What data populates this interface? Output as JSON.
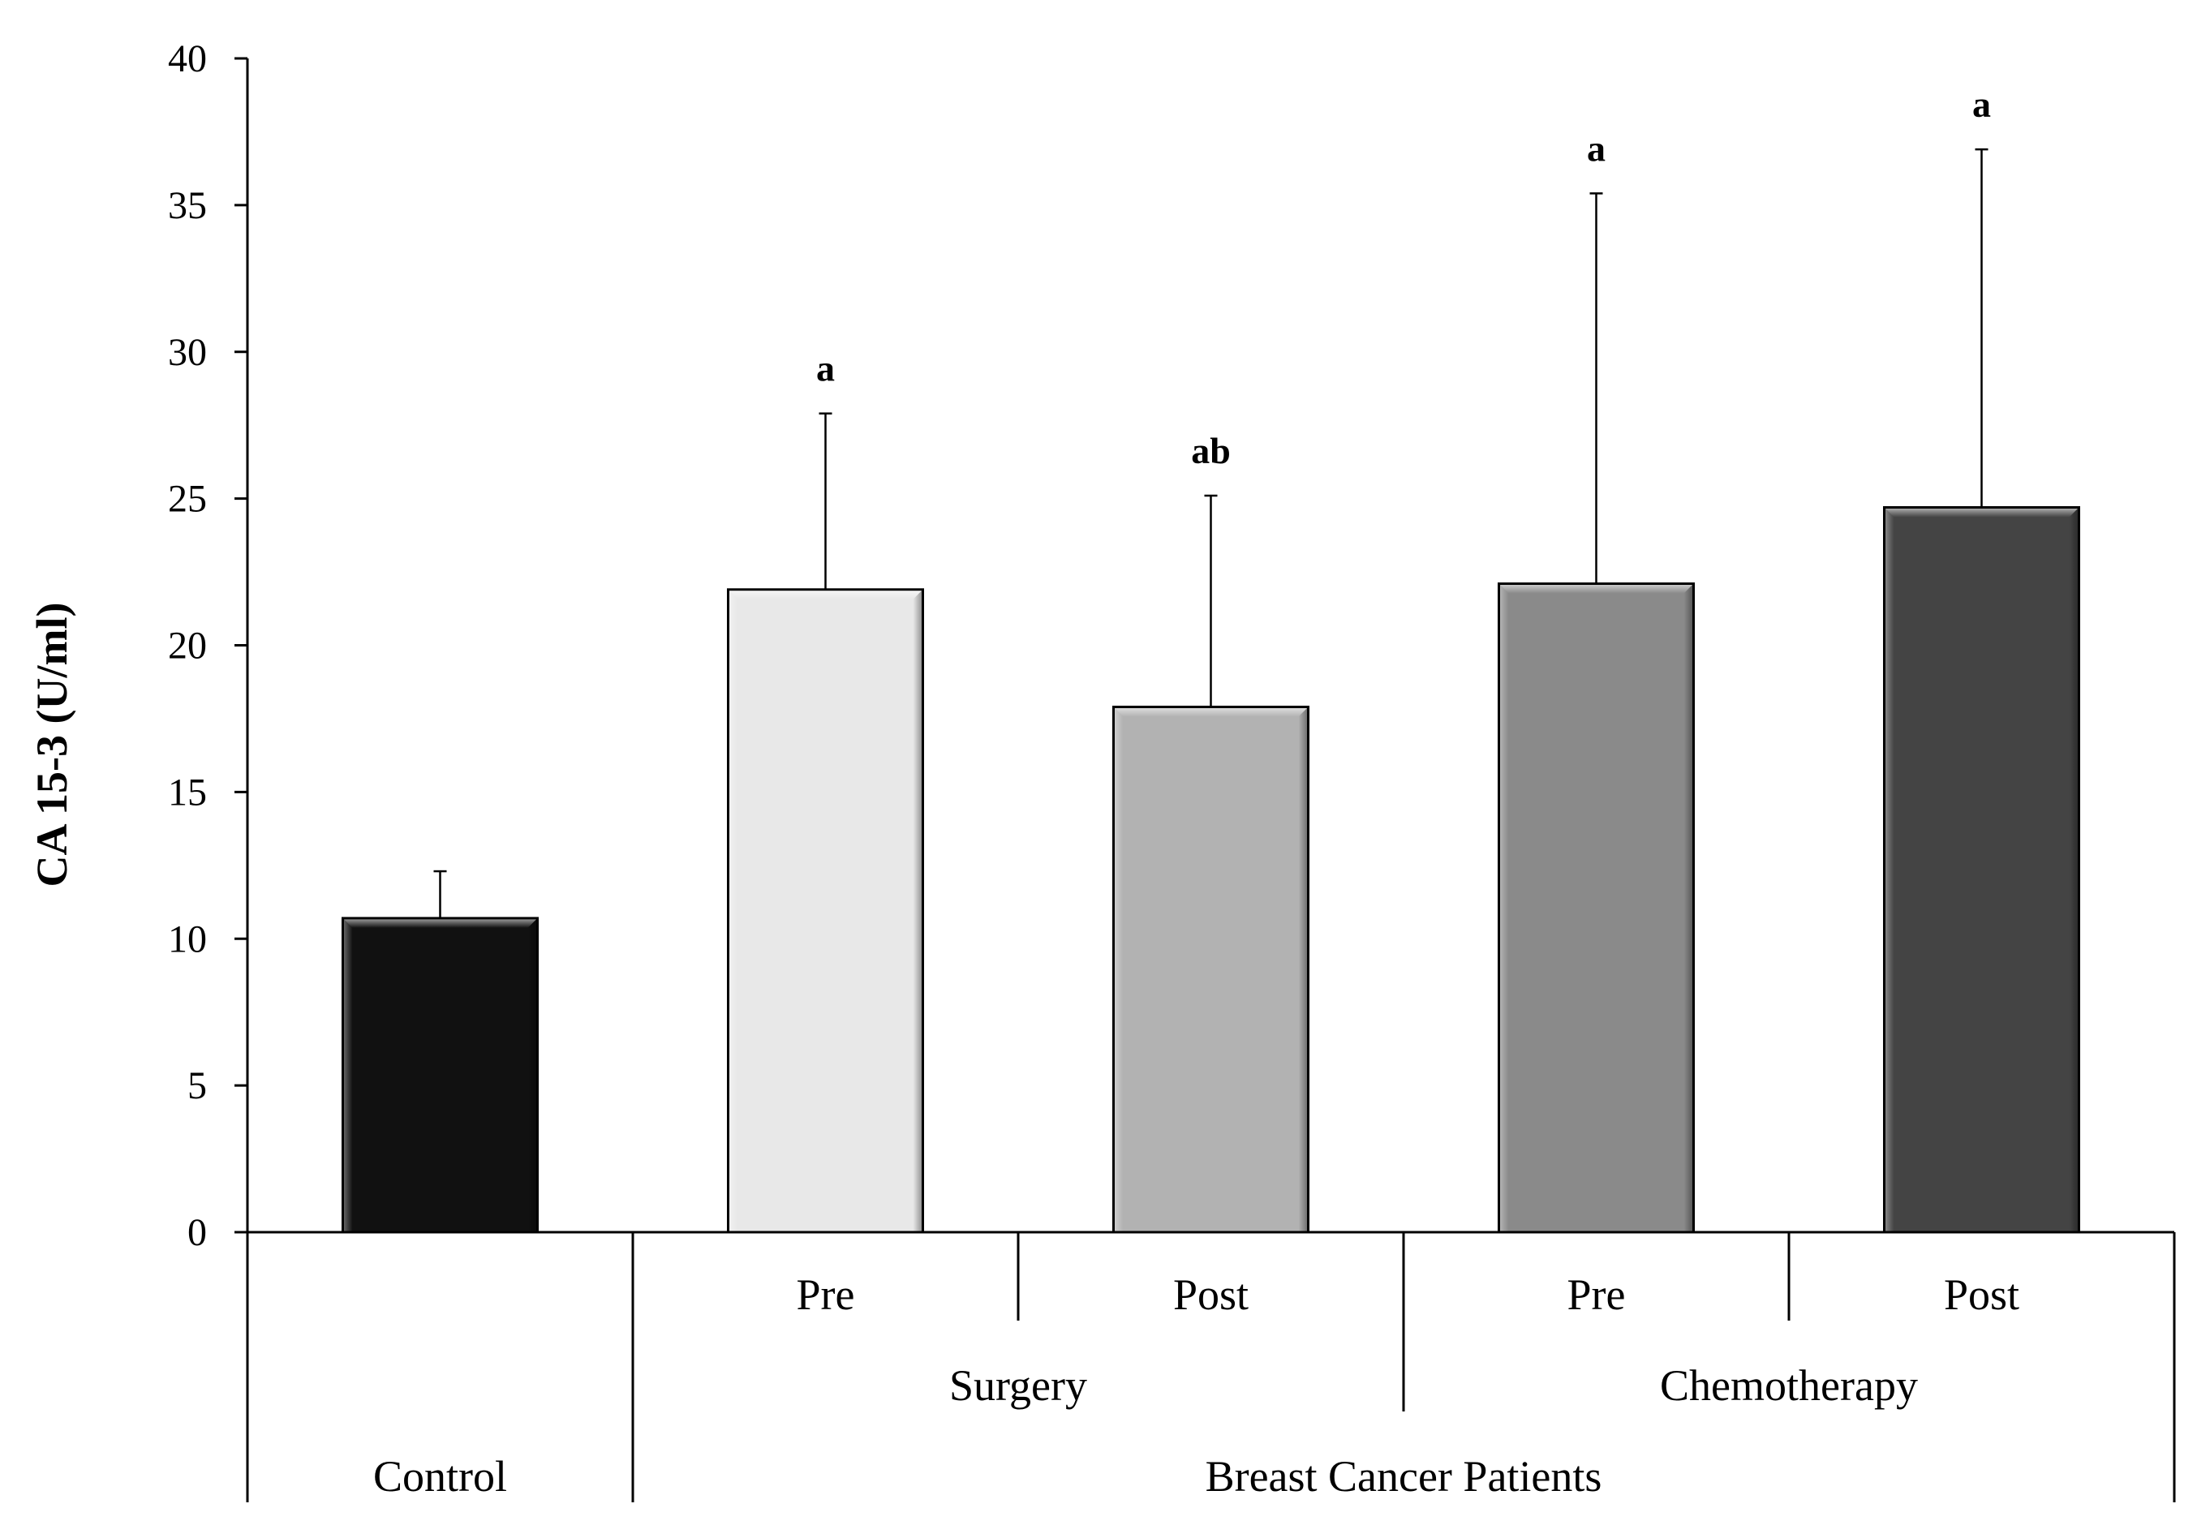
{
  "chart_data": {
    "type": "bar",
    "title": "",
    "xlabel": "",
    "ylabel": "CA 15-3 (U/ml)",
    "ylim": [
      0,
      40
    ],
    "yticks": [
      0,
      5,
      10,
      15,
      20,
      25,
      30,
      35,
      40
    ],
    "grid": false,
    "categories": [
      "Control",
      "Surgery Pre",
      "Surgery Post",
      "Chemotherapy Pre",
      "Chemotherapy Post"
    ],
    "bars": [
      {
        "name": "Control",
        "value": 10.7,
        "error": 1.6,
        "significance": "",
        "color": "#111111",
        "sublabel": ""
      },
      {
        "name": "Surgery Pre",
        "value": 21.9,
        "error": 6.0,
        "significance": "a",
        "color": "#e8e8e8",
        "sublabel": "Pre"
      },
      {
        "name": "Surgery Post",
        "value": 17.9,
        "error": 7.2,
        "significance": "ab",
        "color": "#b2b2b2",
        "sublabel": "Post"
      },
      {
        "name": "Chemotherapy Pre",
        "value": 22.1,
        "error": 13.3,
        "significance": "a",
        "color": "#8a8a8a",
        "sublabel": "Pre"
      },
      {
        "name": "Chemotherapy Post",
        "value": 24.7,
        "error": 12.2,
        "significance": "a",
        "color": "#444444",
        "sublabel": "Post"
      }
    ],
    "groups_level2": [
      "Surgery",
      "Chemotherapy"
    ],
    "groups_level3": [
      "Control",
      "Breast Cancer Patients"
    ]
  }
}
